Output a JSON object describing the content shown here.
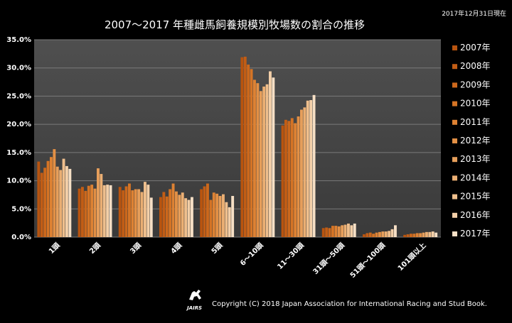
{
  "header": {
    "title": "2007～2017 年種雌馬飼養規模別牧場数の割合の推移",
    "date": "2017年12月31日現在"
  },
  "footer": {
    "copyright": "Copyright (C) 2018 Japan Association for International Racing and Stud Book.",
    "logo_text": "JAIRS"
  },
  "colors": [
    "#b8540f",
    "#c25d15",
    "#cc681c",
    "#d57425",
    "#de8233",
    "#e39045",
    "#e79f5b",
    "#ebaf73",
    "#efbf8d",
    "#f3cfa8",
    "#f6dfc5"
  ],
  "chart_data": {
    "type": "bar",
    "title": "2007～2017 年種雌馬飼養規模別牧場数の割合の推移",
    "xlabel": "",
    "ylabel": "",
    "ylim": [
      0,
      35
    ],
    "yticks": [
      "0.0%",
      "5.0%",
      "10.0%",
      "15.0%",
      "20.0%",
      "25.0%",
      "30.0%",
      "35.0%"
    ],
    "grid": true,
    "legend": "right",
    "categories": [
      "1頭",
      "2頭",
      "3頭",
      "4頭",
      "5頭",
      "6～10頭",
      "11～30頭",
      "31頭～50頭",
      "51頭～100頭",
      "101頭以上"
    ],
    "series": [
      {
        "name": "2007年",
        "values": [
          13.4,
          8.6,
          8.9,
          7.1,
          8.5,
          31.9,
          19.8,
          1.6,
          0.5,
          0.4
        ]
      },
      {
        "name": "2008年",
        "values": [
          11.4,
          8.9,
          8.3,
          8.0,
          9.0,
          32.0,
          20.8,
          1.7,
          0.7,
          0.5
        ]
      },
      {
        "name": "2009年",
        "values": [
          12.3,
          8.2,
          9.0,
          7.2,
          9.5,
          30.6,
          20.6,
          1.6,
          0.8,
          0.6
        ]
      },
      {
        "name": "2010年",
        "values": [
          13.5,
          9.1,
          9.5,
          8.5,
          6.6,
          29.8,
          21.1,
          2.0,
          0.6,
          0.6
        ]
      },
      {
        "name": "2011年",
        "values": [
          14.2,
          9.3,
          8.3,
          9.5,
          7.9,
          27.9,
          20.2,
          2.0,
          0.8,
          0.7
        ]
      },
      {
        "name": "2012年",
        "values": [
          15.6,
          8.6,
          8.5,
          8.1,
          7.7,
          27.3,
          21.4,
          1.9,
          0.9,
          0.7
        ]
      },
      {
        "name": "2013年",
        "values": [
          12.5,
          12.2,
          8.5,
          7.5,
          7.3,
          25.9,
          22.6,
          2.1,
          1.0,
          0.8
        ]
      },
      {
        "name": "2014年",
        "values": [
          11.9,
          11.2,
          8.0,
          7.9,
          7.6,
          26.7,
          23.0,
          2.2,
          1.0,
          0.9
        ]
      },
      {
        "name": "2015年",
        "values": [
          13.9,
          9.2,
          9.8,
          6.9,
          6.2,
          27.1,
          24.2,
          2.4,
          1.1,
          0.9
        ]
      },
      {
        "name": "2016年",
        "values": [
          12.6,
          9.3,
          9.3,
          6.6,
          5.3,
          29.4,
          24.3,
          2.1,
          1.4,
          1.0
        ]
      },
      {
        "name": "2017年",
        "values": [
          12.1,
          9.2,
          7.0,
          7.1,
          7.3,
          28.3,
          25.2,
          2.4,
          2.1,
          0.8
        ]
      }
    ]
  }
}
